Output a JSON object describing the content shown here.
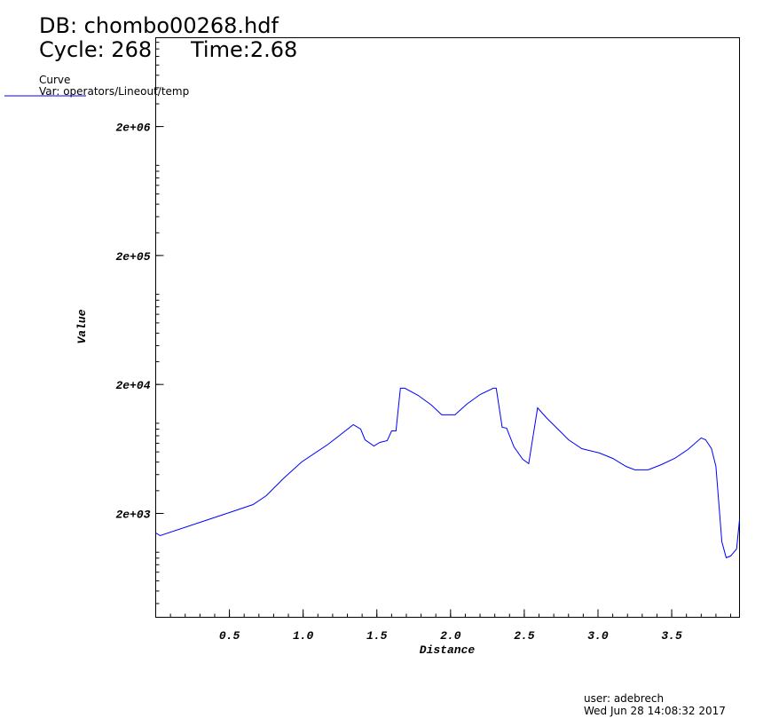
{
  "header": {
    "db": "DB: chombo00268.hdf",
    "cycle": "Cycle: 268",
    "time": "Time:2.68"
  },
  "legend": {
    "title": "Curve",
    "var": "Var: operators/Lineout/temp",
    "line_color": "#0000ff"
  },
  "footer": {
    "user": "user: adebrech",
    "date": "Wed Jun 28 14:08:32 2017"
  },
  "chart_data": {
    "type": "line",
    "xlabel": "Distance",
    "ylabel": "Value",
    "xlim": [
      0,
      3.96
    ],
    "ylim": [
      313,
      9770000
    ],
    "yscale": "log",
    "grid": false,
    "xticks": [
      0.5,
      1.0,
      1.5,
      2.0,
      2.5,
      3.0,
      3.5
    ],
    "xtick_labels": [
      "0.5",
      "1.0",
      "1.5",
      "2.0",
      "2.5",
      "3.0",
      "3.5"
    ],
    "yticks": [
      2000,
      20000,
      200000,
      2000000
    ],
    "ytick_labels": [
      "2e+03",
      "2e+04",
      "2e+05",
      "2e+06"
    ],
    "series": [
      {
        "color": "#0000ff",
        "x": [
          0,
          0.03,
          0.5,
          0.66,
          0.75,
          0.87,
          0.99,
          1.17,
          1.34,
          1.39,
          1.42,
          1.48,
          1.52,
          1.57,
          1.6,
          1.63,
          1.66,
          1.69,
          1.78,
          1.87,
          1.94,
          2.03,
          2.11,
          2.2,
          2.29,
          2.31,
          2.35,
          2.38,
          2.43,
          2.49,
          2.53,
          2.59,
          2.65,
          2.74,
          2.8,
          2.89,
          3.01,
          3.1,
          3.19,
          3.25,
          3.34,
          3.43,
          3.52,
          3.61,
          3.7,
          3.73,
          3.77,
          3.8,
          3.84,
          3.87,
          3.9,
          3.94,
          3.96
        ],
        "y": [
          1412,
          1346,
          2032,
          2344,
          2746,
          3770,
          5012,
          6886,
          9754,
          9012,
          7448,
          6670,
          7108,
          7334,
          8730,
          8730,
          18700,
          18700,
          16460,
          13840,
          11620,
          11620,
          14060,
          16720,
          18700,
          18700,
          9300,
          9160,
          6560,
          5260,
          4860,
          13180,
          11060,
          8730,
          7450,
          6360,
          5880,
          5340,
          4630,
          4350,
          4350,
          4780,
          5340,
          6260,
          7700,
          7450,
          6360,
          4630,
          1204,
          906,
          935,
          1061,
          1790
        ]
      }
    ]
  }
}
